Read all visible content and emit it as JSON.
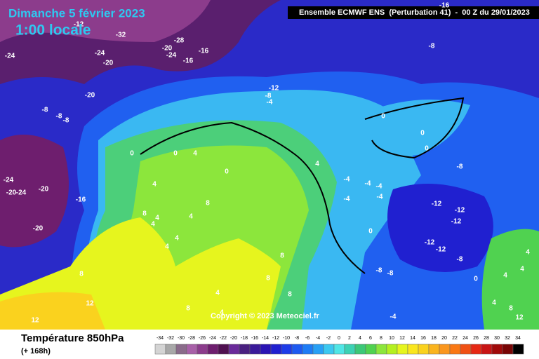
{
  "header": {
    "date": "Dimanche 5 février 2023",
    "time": "1:00 locale",
    "run": "Ensemble ECMWF ENS  (Perturbation 41)  -  00 Z du 29/01/2023"
  },
  "copyright": "Copyright © 2023 Meteociel.fr",
  "footer": {
    "title": "Température 850hPa",
    "lead": "(+ 168h)"
  },
  "contour_labels": [
    -12,
    -32,
    -28,
    -16,
    -20,
    -24,
    -16,
    -24,
    -24,
    -20,
    -20,
    -8,
    -8,
    -8,
    -12,
    -8,
    -4,
    -8,
    -16,
    0,
    0,
    0,
    -8,
    0,
    0,
    4,
    0,
    4,
    -4,
    -4,
    -4,
    -4,
    -4,
    -12,
    -12,
    -12,
    -12,
    -12,
    -8,
    -24,
    -20,
    -24,
    -20,
    -16,
    -20,
    4,
    8,
    4,
    4,
    8,
    4,
    4,
    4,
    8,
    8,
    8,
    12,
    12,
    8,
    4,
    4,
    -8,
    -8,
    0,
    4,
    4,
    4,
    0,
    8,
    -4,
    4,
    8,
    12
  ],
  "scale": {
    "values": [
      -34,
      -32,
      -30,
      -28,
      -26,
      -24,
      -22,
      -20,
      -18,
      -16,
      -14,
      -12,
      -10,
      -8,
      -6,
      -4,
      -2,
      0,
      2,
      4,
      6,
      8,
      10,
      12,
      14,
      16,
      18,
      20,
      22,
      24,
      26,
      28,
      30,
      32,
      34
    ],
    "colors": [
      "#d4d4d4",
      "#a8a8a8",
      "#8a6b8a",
      "#a860a8",
      "#8c3c8c",
      "#6e1e6e",
      "#501050",
      "#6a2a9a",
      "#4a2080",
      "#3a1a9a",
      "#2a14b4",
      "#2020d0",
      "#1e3ce8",
      "#1e5af0",
      "#1e7cf5",
      "#28a0f5",
      "#3cc8f0",
      "#50e6e6",
      "#3cd2b4",
      "#3cc878",
      "#50d250",
      "#8ce63c",
      "#b4f020",
      "#e6f51e",
      "#fae61e",
      "#fad21e",
      "#fab41e",
      "#fa961e",
      "#fa7814",
      "#f05014",
      "#e62814",
      "#c81414",
      "#a00a0a",
      "#780505",
      "#000000"
    ]
  }
}
